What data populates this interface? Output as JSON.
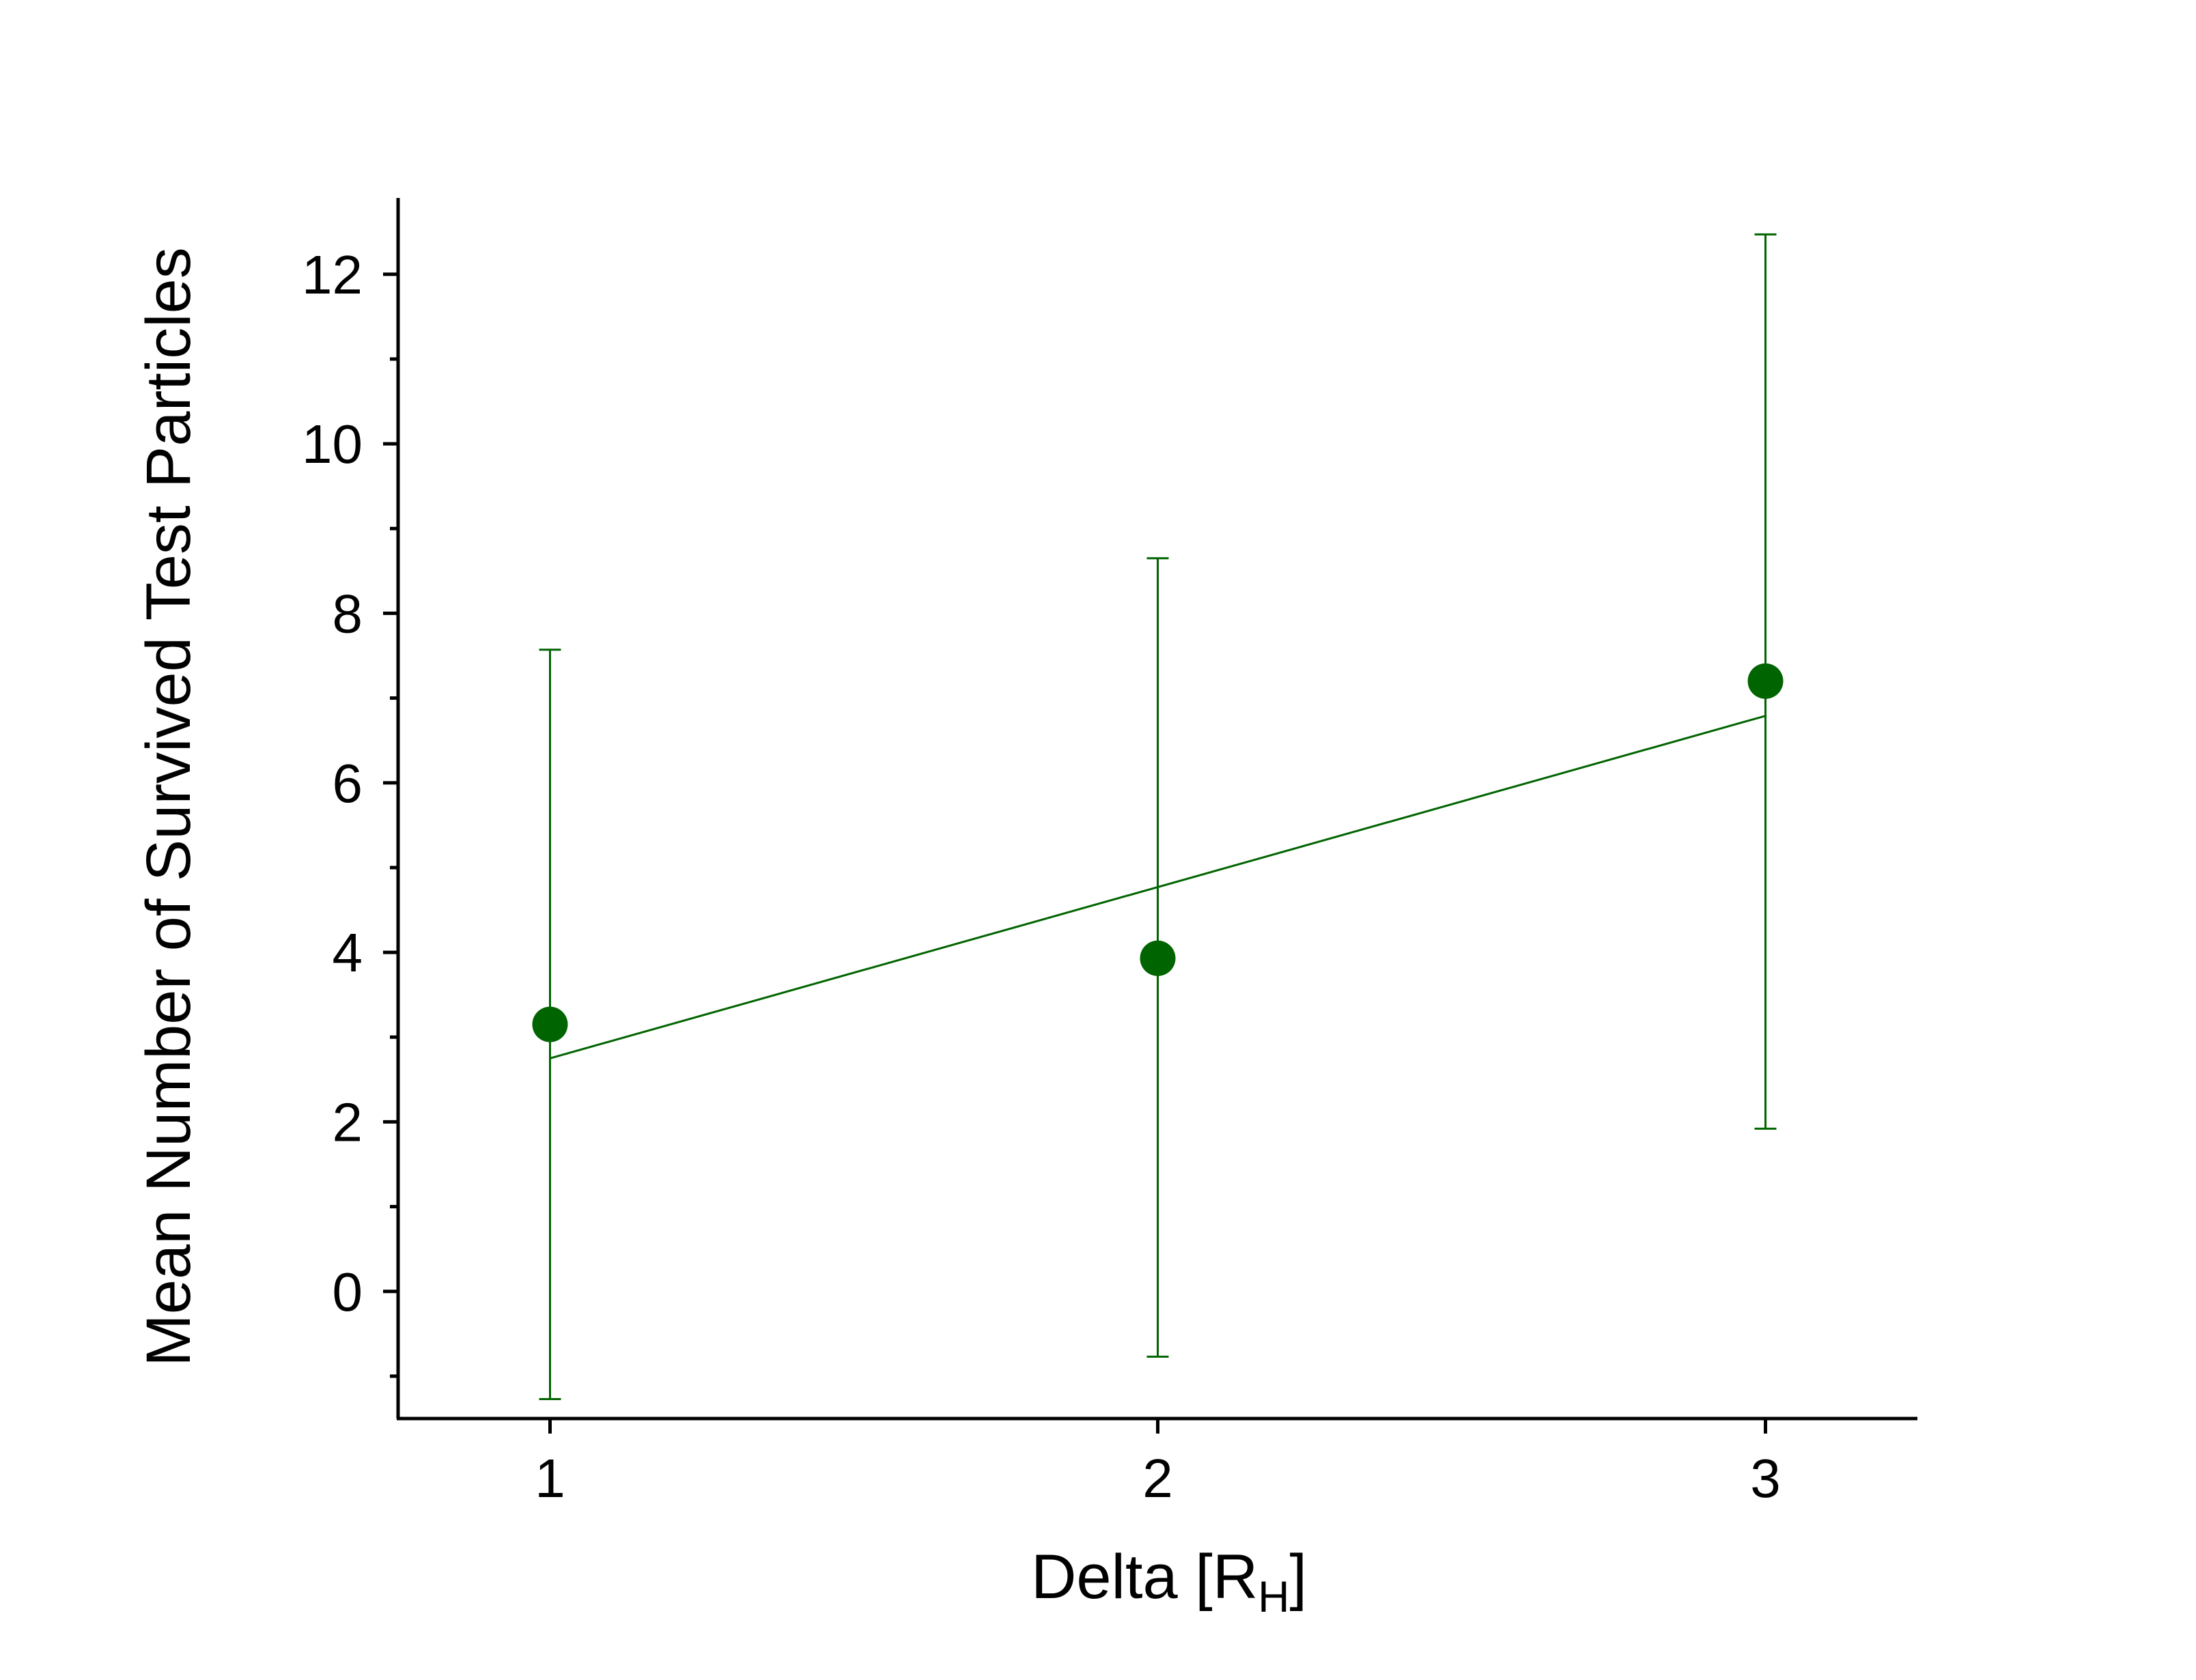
{
  "chart_data": {
    "type": "scatter",
    "xlabel": "Delta [R",
    "xlabel_subscript": "H",
    "xlabel_suffix": "]",
    "ylabel": "Mean Number of Survived Test Particles",
    "xlim": [
      0.75,
      3.25
    ],
    "ylim": [
      -1.5,
      12.9
    ],
    "x_ticks": [
      1,
      2,
      3
    ],
    "y_ticks": [
      0,
      2,
      4,
      6,
      8,
      10,
      12
    ],
    "y_minor_ticks": [
      -1,
      1,
      3,
      5,
      7,
      9,
      11
    ],
    "grid": false,
    "legend": "none",
    "colors": {
      "series": "#006400",
      "axis": "#000000"
    },
    "series": [
      {
        "x": [
          1,
          2,
          3
        ],
        "y": [
          3.15,
          3.93,
          7.2
        ],
        "error_upper": [
          7.57,
          8.65,
          12.47
        ],
        "error_lower": [
          -1.27,
          -0.77,
          1.92
        ]
      }
    ],
    "fit_line": {
      "x": [
        1,
        3
      ],
      "y": [
        2.75,
        6.79
      ]
    }
  }
}
